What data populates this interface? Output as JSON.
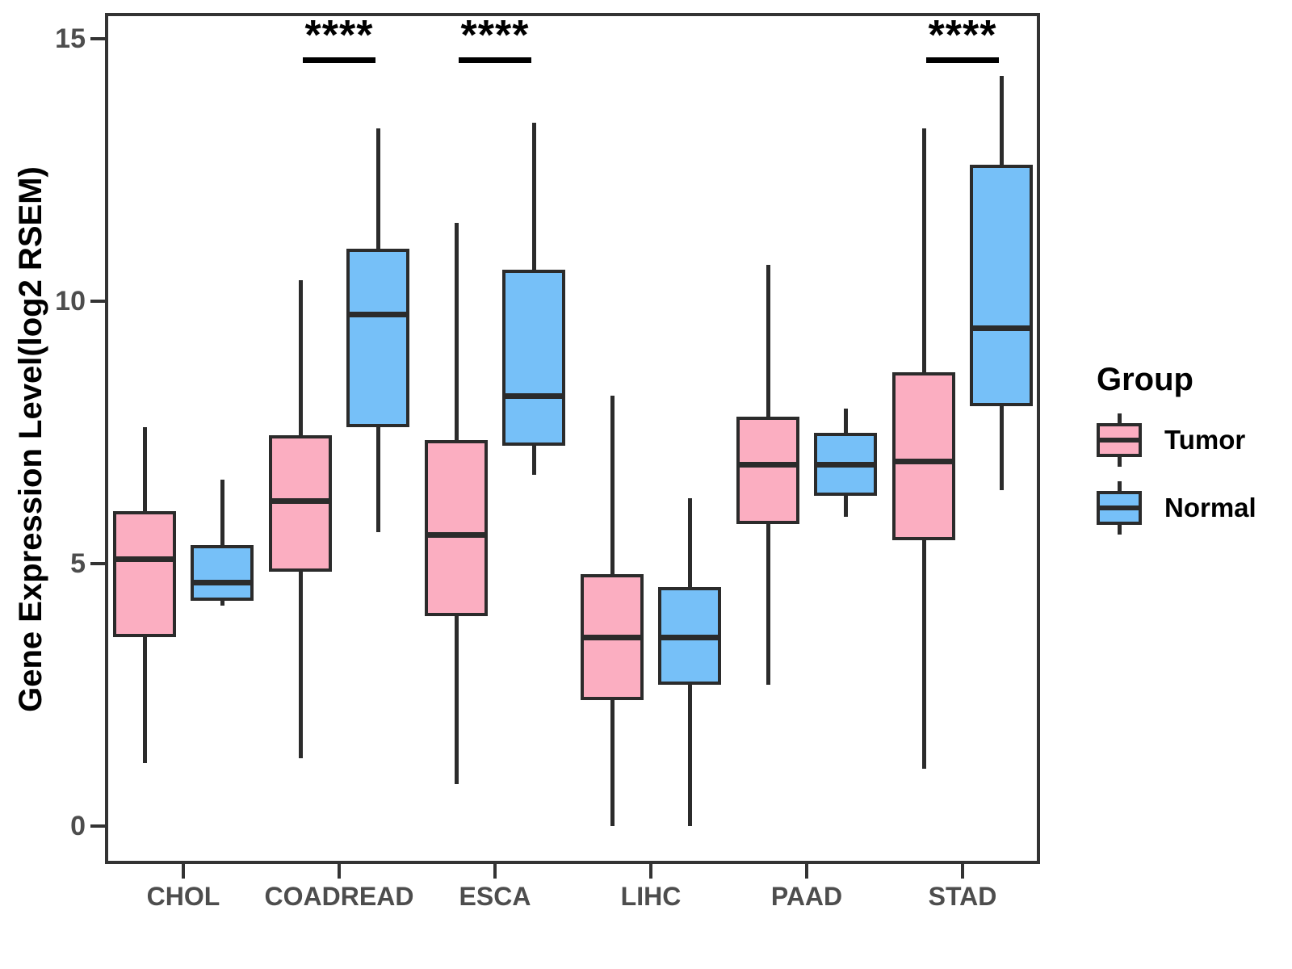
{
  "chart_data": {
    "type": "boxplot",
    "title": "",
    "xlabel": "",
    "ylabel": "Gene Expression Level(log2 RSEM)",
    "categories": [
      "CHOL",
      "COADREAD",
      "ESCA",
      "LIHC",
      "PAAD",
      "STAD"
    ],
    "y_ticks": [
      0,
      5,
      10,
      15
    ],
    "ylim": [
      -0.7,
      15.5
    ],
    "grid": false,
    "legend_position": "right",
    "series": [
      {
        "name": "Tumor",
        "color": "#FBAEC1",
        "boxes": [
          {
            "category": "CHOL",
            "whisker_low": 1.2,
            "q1": 3.6,
            "median": 5.1,
            "q3": 6.0,
            "whisker_high": 7.6
          },
          {
            "category": "COADREAD",
            "whisker_low": 1.3,
            "q1": 4.85,
            "median": 6.2,
            "q3": 7.45,
            "whisker_high": 10.4
          },
          {
            "category": "ESCA",
            "whisker_low": 0.8,
            "q1": 4.0,
            "median": 5.55,
            "q3": 7.35,
            "whisker_high": 11.5
          },
          {
            "category": "LIHC",
            "whisker_low": 0.0,
            "q1": 2.4,
            "median": 3.6,
            "q3": 4.8,
            "whisker_high": 8.2
          },
          {
            "category": "PAAD",
            "whisker_low": 2.7,
            "q1": 5.75,
            "median": 6.9,
            "q3": 7.8,
            "whisker_high": 10.7
          },
          {
            "category": "STAD",
            "whisker_low": 1.1,
            "q1": 5.45,
            "median": 6.95,
            "q3": 8.65,
            "whisker_high": 13.3
          }
        ]
      },
      {
        "name": "Normal",
        "color": "#76C0F8",
        "boxes": [
          {
            "category": "CHOL",
            "whisker_low": 4.2,
            "q1": 4.3,
            "median": 4.65,
            "q3": 5.35,
            "whisker_high": 6.6
          },
          {
            "category": "COADREAD",
            "whisker_low": 5.6,
            "q1": 7.6,
            "median": 9.75,
            "q3": 11.0,
            "whisker_high": 13.3
          },
          {
            "category": "ESCA",
            "whisker_low": 6.7,
            "q1": 7.25,
            "median": 8.2,
            "q3": 10.6,
            "whisker_high": 13.4
          },
          {
            "category": "LIHC",
            "whisker_low": 0.0,
            "q1": 2.7,
            "median": 3.6,
            "q3": 4.55,
            "whisker_high": 6.25
          },
          {
            "category": "PAAD",
            "whisker_low": 5.9,
            "q1": 6.3,
            "median": 6.9,
            "q3": 7.5,
            "whisker_high": 7.95
          },
          {
            "category": "STAD",
            "whisker_low": 6.4,
            "q1": 8.0,
            "median": 9.5,
            "q3": 12.6,
            "whisker_high": 14.3
          }
        ]
      }
    ],
    "significance_markers": [
      {
        "category": "COADREAD",
        "label": "****"
      },
      {
        "category": "ESCA",
        "label": "****"
      },
      {
        "category": "STAD",
        "label": "****"
      }
    ],
    "legend": {
      "title": "Group",
      "entries": [
        {
          "label": "Tumor",
          "color": "#FBAEC1"
        },
        {
          "label": "Normal",
          "color": "#76C0F8"
        }
      ]
    },
    "colors": {
      "box_stroke": "#2b2b2b",
      "axis_line": "#333333",
      "tick_label": "#4d4d4d",
      "axis_title": "#000000",
      "background": "#ffffff"
    }
  }
}
